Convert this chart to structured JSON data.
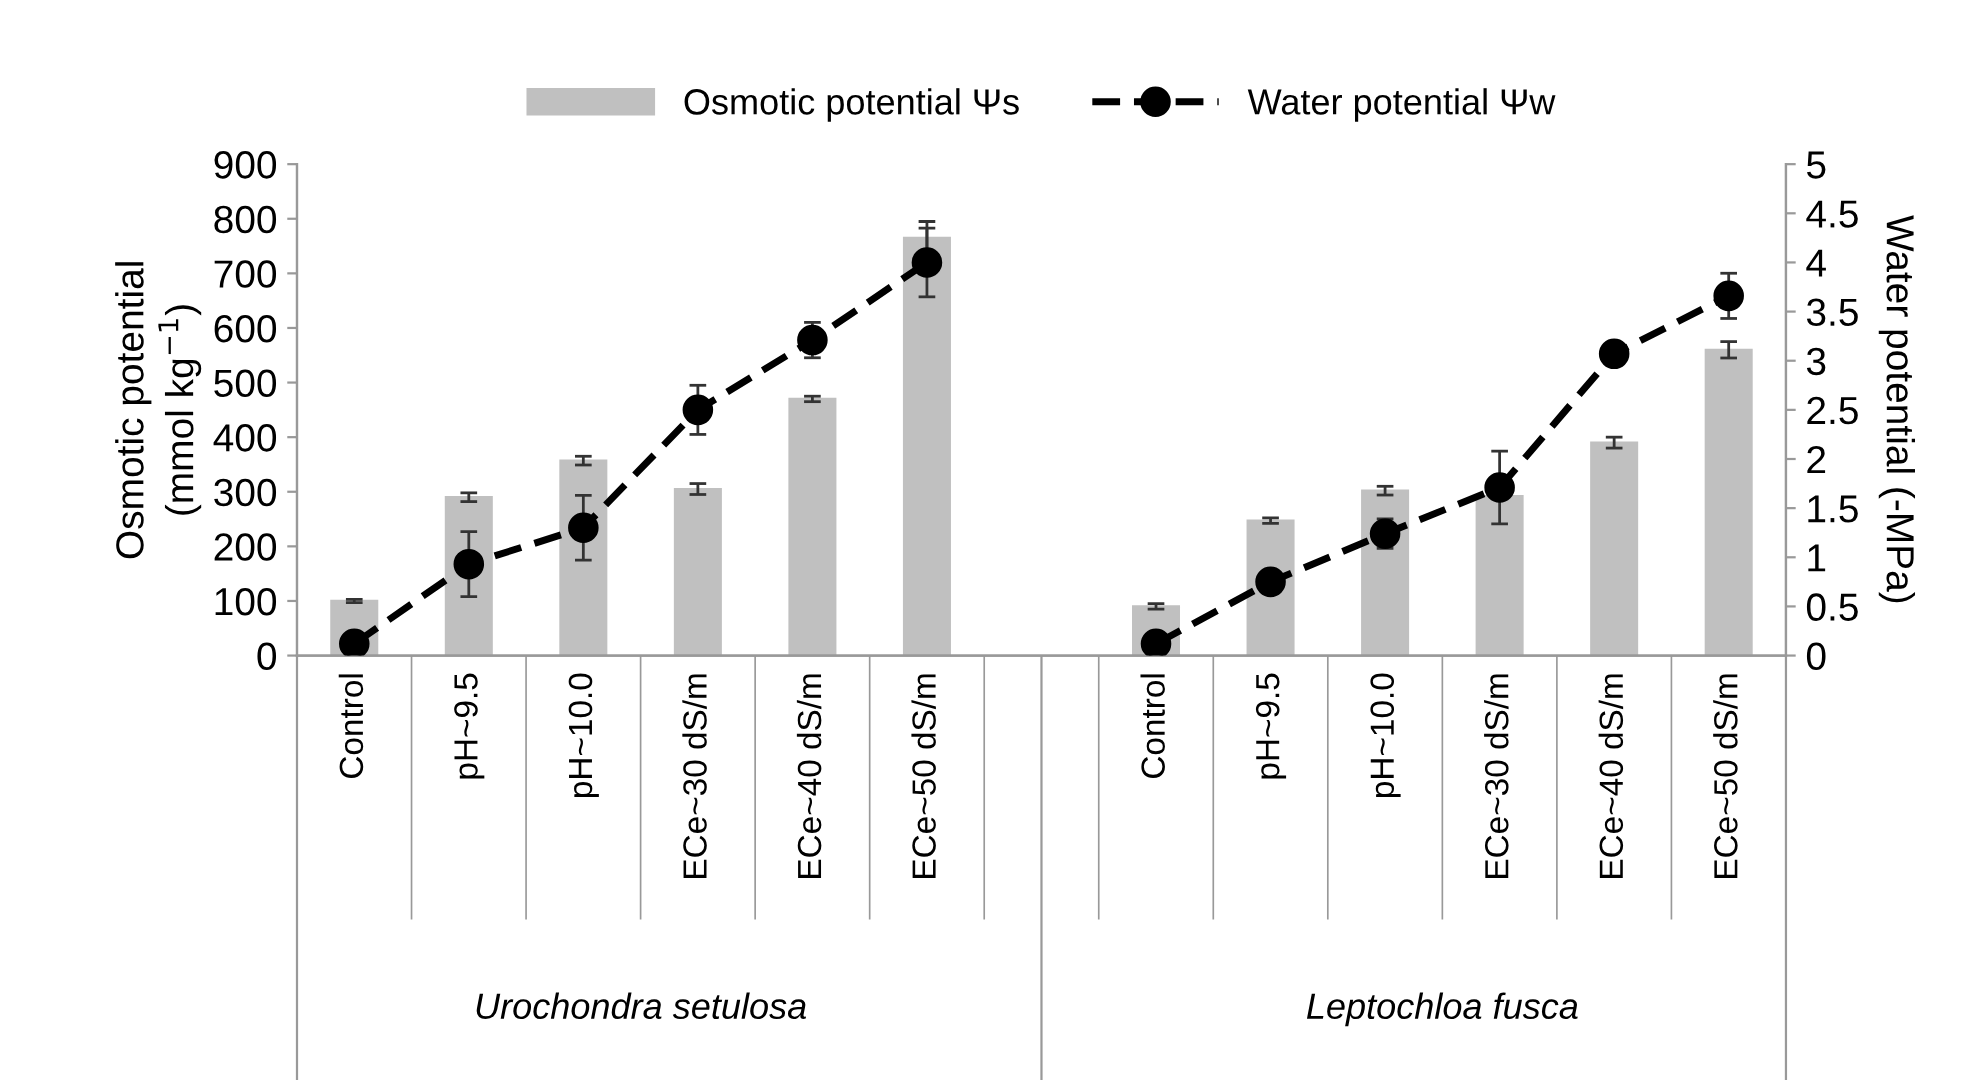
{
  "chart_data": {
    "type": "bar",
    "categories": [
      "Control",
      "pH~9.5",
      "pH~10.0",
      "ECe~30 dS/m",
      "ECe~40 dS/m",
      "ECe~50 dS/m",
      null,
      "Control",
      "pH~9.5",
      "pH~10.0",
      "ECe~30 dS/m",
      "ECe~40 dS/m",
      "ECe~50 dS/m"
    ],
    "ylabel": "Osmotic potential\n(mmol kg$^{−1}$)",
    "y2label": "Water potential (-MPa)",
    "series": [
      {
        "name": "Osmotic potential Ψs",
        "color": "#c0c0c0",
        "values": [
          100,
          290,
          357,
          305,
          470,
          765,
          null,
          90,
          247,
          302,
          292,
          390,
          560
        ],
        "errors": [
          3,
          8,
          8,
          10,
          5,
          30,
          null,
          5,
          5,
          8,
          null,
          10,
          15
        ]
      },
      {
        "name": "Water potential Ψw",
        "type": "line",
        "axis": "y2",
        "color": "#000000",
        "marker": "circle",
        "line_style": "dashed",
        "values": [
          0.12,
          0.93,
          1.3,
          2.5,
          3.21,
          4.0,
          null,
          0.12,
          0.75,
          1.24,
          1.71,
          3.07,
          3.66
        ],
        "errors": [
          null,
          0.33,
          0.33,
          0.25,
          0.18,
          0.35,
          null,
          null,
          null,
          0.15,
          0.37,
          0.1,
          0.23
        ]
      }
    ],
    "ylim": [
      0,
      900
    ],
    "yticks": [
      0,
      100,
      200,
      300,
      400,
      500,
      600,
      700,
      800,
      900
    ],
    "y2lim": [
      0,
      5
    ],
    "y2ticks": [
      0,
      {
        "value": 0.5,
        "label": "0.5"
      },
      1,
      {
        "value": 1.5,
        "label": "1.5"
      },
      2,
      {
        "value": 2.5,
        "label": "2.5"
      },
      3,
      {
        "value": 3.5,
        "label": "3.5"
      },
      4,
      {
        "value": 4.5,
        "label": "4.5"
      },
      5
    ],
    "annotations": [
      "Urochondra setulosa",
      "Leptochloa fusca"
    ],
    "legend": "top",
    "grid": false
  }
}
